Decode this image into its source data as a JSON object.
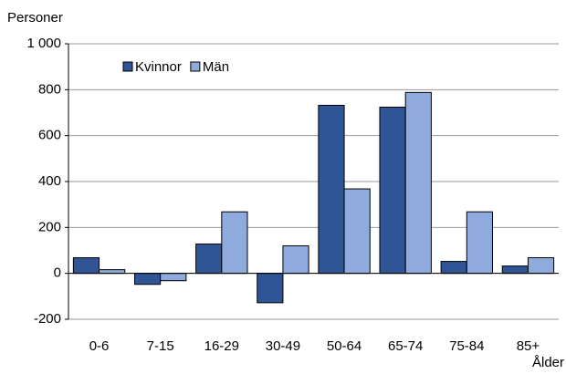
{
  "chart_data": {
    "type": "bar",
    "y_axis_label": "Personer",
    "x_axis_label": "Ålder",
    "categories": [
      "0-6",
      "7-15",
      "16-29",
      "30-49",
      "50-64",
      "65-74",
      "75-84",
      "85+"
    ],
    "series": [
      {
        "name": "Kvinnor",
        "color": "#2f5597",
        "values": [
          68,
          -48,
          128,
          -128,
          732,
          724,
          52,
          32
        ]
      },
      {
        "name": "Män",
        "color": "#8faadc",
        "values": [
          16,
          -32,
          268,
          120,
          368,
          788,
          268,
          68
        ]
      }
    ],
    "ylim": [
      -200,
      1000
    ],
    "yticks": [
      -200,
      0,
      200,
      400,
      600,
      800,
      {
        "value": 1000,
        "label": "1 000"
      }
    ],
    "grid": true,
    "legend": "top-left"
  }
}
